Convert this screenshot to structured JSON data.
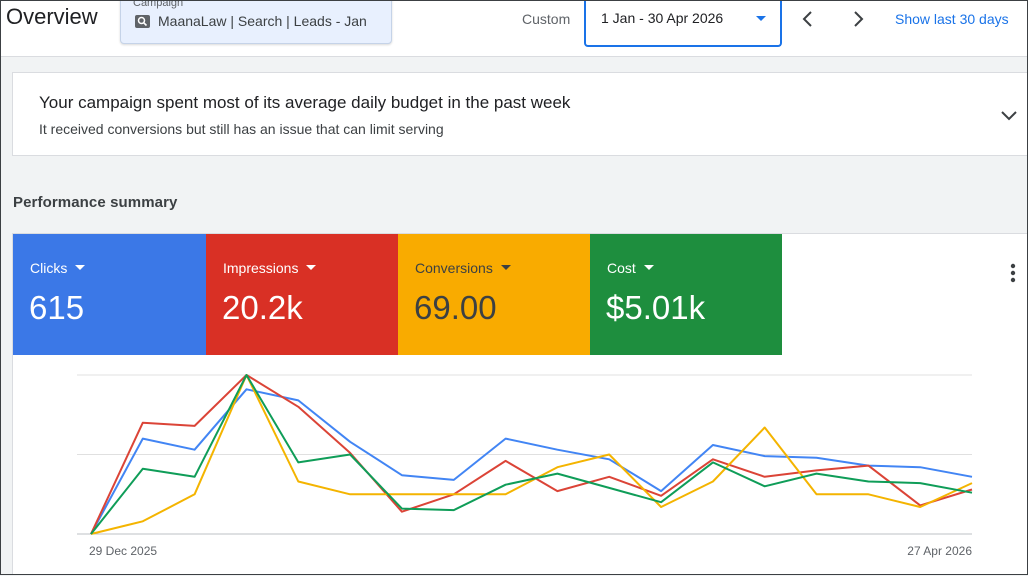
{
  "header": {
    "title": "Overview",
    "campaign_label": "Campaign",
    "campaign_name": "MaanaLaw | Search | Leads - Jan",
    "custom_label": "Custom",
    "date_range": "1 Jan - 30 Apr 2026",
    "show_last": "Show last 30 days"
  },
  "alert": {
    "title": "Your campaign spent most of its average daily budget in the past week",
    "subtitle": "It received conversions but still has an issue that can limit serving"
  },
  "performance": {
    "title": "Performance summary",
    "metrics": [
      {
        "label": "Clicks",
        "value": "615",
        "color": "#3b78e7",
        "text_color": "#ffffff"
      },
      {
        "label": "Impressions",
        "value": "20.2k",
        "color": "#d93025",
        "text_color": "#ffffff"
      },
      {
        "label": "Conversions",
        "value": "69.00",
        "color": "#f9ab00",
        "text_color": "#3c4043"
      },
      {
        "label": "Cost",
        "value": "$5.01k",
        "color": "#1e8e3e",
        "text_color": "#ffffff"
      }
    ]
  },
  "chart_data": {
    "type": "line",
    "x_start_label": "29 Dec 2025",
    "x_end_label": "27 Apr 2026",
    "y_range": [
      0,
      100
    ],
    "grid": true,
    "legend": "none",
    "series": [
      {
        "color": "#4285f4",
        "values": [
          0,
          60,
          53,
          91,
          84,
          58,
          37,
          34,
          60,
          53,
          47,
          27,
          56,
          49,
          48,
          43,
          42,
          36
        ]
      },
      {
        "color": "#db4437",
        "values": [
          0,
          70,
          68,
          100,
          80,
          51,
          14,
          25,
          46,
          27,
          36,
          24,
          47,
          36,
          40,
          43,
          18,
          28
        ]
      },
      {
        "color": "#f4b400",
        "values": [
          0,
          8,
          25,
          100,
          33,
          25,
          25,
          25,
          25,
          42,
          50,
          17,
          33,
          67,
          25,
          25,
          17,
          32
        ]
      },
      {
        "color": "#0f9d58",
        "values": [
          0,
          41,
          36,
          100,
          45,
          50,
          16,
          15,
          31,
          38,
          29,
          20,
          45,
          30,
          38,
          33,
          32,
          26
        ]
      }
    ]
  }
}
